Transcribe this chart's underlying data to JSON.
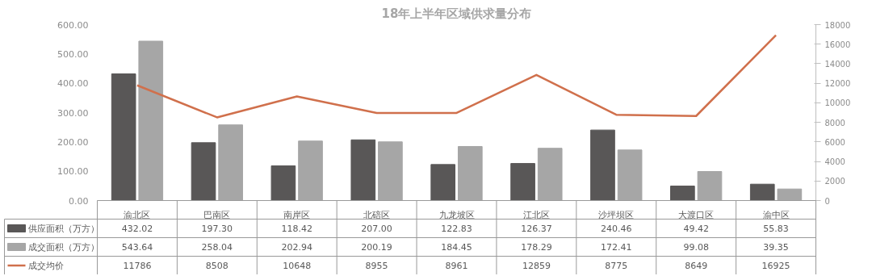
{
  "chart_data": {
    "type": "bar",
    "title": "18年上半年区域供求量分布",
    "categories": [
      "渝北区",
      "巴南区",
      "南岸区",
      "北碚区",
      "九龙坡区",
      "江北区",
      "沙坪坝区",
      "大渡口区",
      "渝中区"
    ],
    "series": [
      {
        "name": "供应面积（万方）",
        "color": "#595757",
        "values": [
          432.02,
          197.3,
          118.42,
          207.0,
          122.83,
          126.37,
          240.46,
          49.42,
          55.83
        ],
        "value_labels": [
          "432.02",
          "197.30",
          "118.42",
          "207.00",
          "122.83",
          "126.37",
          "240.46",
          "49.42",
          "55.83"
        ]
      },
      {
        "name": "成交面积（万方）",
        "color": "#a6a6a6",
        "values": [
          543.64,
          258.04,
          202.94,
          200.19,
          184.45,
          178.29,
          172.41,
          99.08,
          39.35
        ],
        "value_labels": [
          "543.64",
          "258.04",
          "202.94",
          "200.19",
          "184.45",
          "178.29",
          "172.41",
          "99.08",
          "39.35"
        ]
      },
      {
        "name": "成交均价",
        "type": "line",
        "axis": "y2",
        "color": "#d0704c",
        "values": [
          11786,
          8508,
          10648,
          8955,
          8961,
          12859,
          8775,
          8649,
          16925
        ],
        "value_labels": [
          "11786",
          "8508",
          "10648",
          "8955",
          "8961",
          "12859",
          "8775",
          "8649",
          "16925"
        ]
      }
    ],
    "ylim": [
      0,
      600
    ],
    "yticks": [
      {
        "value": 0,
        "label": "0.00"
      },
      {
        "value": 100,
        "label": "100.00"
      },
      {
        "value": 200,
        "label": "200.00"
      },
      {
        "value": 300,
        "label": "300.00"
      },
      {
        "value": 400,
        "label": "400.00"
      },
      {
        "value": 500,
        "label": "500.00"
      },
      {
        "value": 600,
        "label": "600.00"
      }
    ],
    "y2lim": [
      0,
      18000
    ],
    "y2ticks": [
      0,
      2000,
      4000,
      6000,
      8000,
      10000,
      12000,
      14000,
      16000,
      18000
    ],
    "legend": "bottom",
    "grid": false
  }
}
